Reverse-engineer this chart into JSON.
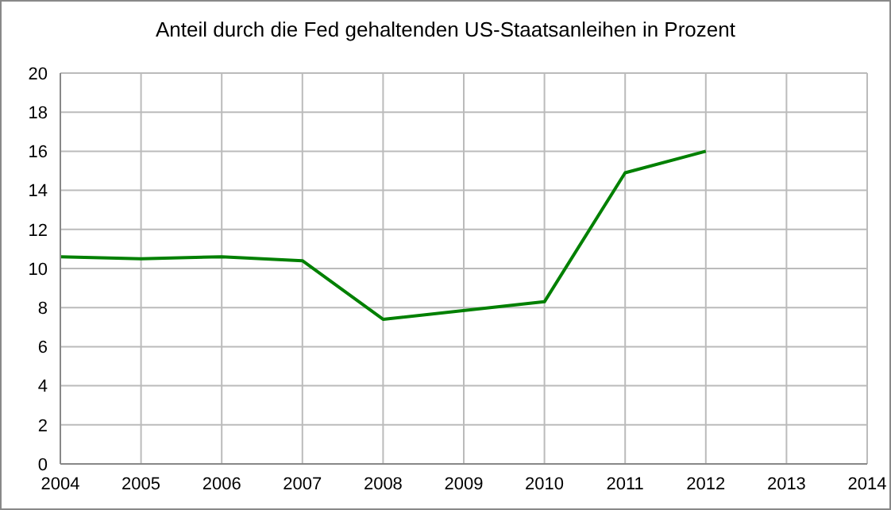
{
  "chart_data": {
    "type": "line",
    "title": "Anteil durch die Fed gehaltenden US-Staatsanleihen in Prozent",
    "x": [
      2004,
      2005,
      2006,
      2007,
      2008,
      2010,
      2011,
      2012
    ],
    "series": [
      {
        "color": "#008000",
        "values": [
          10.6,
          10.5,
          10.6,
          10.4,
          7.4,
          8.3,
          14.9,
          16.0
        ]
      }
    ],
    "xlim": [
      2004,
      2014
    ],
    "xticks": [
      2004,
      2005,
      2006,
      2007,
      2008,
      2009,
      2010,
      2011,
      2012,
      2013,
      2014
    ],
    "ylim": [
      0,
      20
    ],
    "yticks": [
      0,
      2,
      4,
      6,
      8,
      10,
      12,
      14,
      16,
      18,
      20
    ],
    "grid": true,
    "marker": "none",
    "line_style": "solid"
  }
}
